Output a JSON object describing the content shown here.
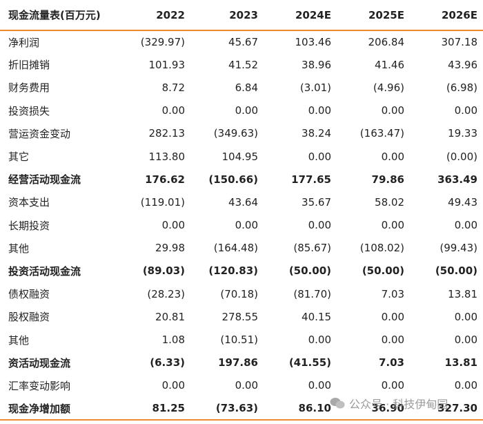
{
  "table": {
    "header": [
      "现金流量表(百万元)",
      "2022",
      "2023",
      "2024E",
      "2025E",
      "2026E"
    ],
    "rows": [
      {
        "cells": [
          "净利润",
          "(329.97)",
          "45.67",
          "103.46",
          "206.84",
          "307.18"
        ],
        "bold": false
      },
      {
        "cells": [
          "折旧摊销",
          "101.93",
          "41.52",
          "38.96",
          "41.46",
          "43.96"
        ],
        "bold": false
      },
      {
        "cells": [
          "财务费用",
          "8.72",
          "6.84",
          "(3.01)",
          "(4.96)",
          "(6.98)"
        ],
        "bold": false
      },
      {
        "cells": [
          "投资损失",
          "0.00",
          "0.00",
          "0.00",
          "0.00",
          "0.00"
        ],
        "bold": false
      },
      {
        "cells": [
          "营运资金变动",
          "282.13",
          "(349.63)",
          "38.24",
          "(163.47)",
          "19.33"
        ],
        "bold": false
      },
      {
        "cells": [
          "其它",
          "113.80",
          "104.95",
          "0.00",
          "0.00",
          "(0.00)"
        ],
        "bold": false
      },
      {
        "cells": [
          "经营活动现金流",
          "176.62",
          "(150.66)",
          "177.65",
          "79.86",
          "363.49"
        ],
        "bold": true
      },
      {
        "cells": [
          "资本支出",
          "(119.01)",
          "43.64",
          "35.67",
          "58.02",
          "49.43"
        ],
        "bold": false
      },
      {
        "cells": [
          "长期投资",
          "0.00",
          "0.00",
          "0.00",
          "0.00",
          "0.00"
        ],
        "bold": false
      },
      {
        "cells": [
          "其他",
          "29.98",
          "(164.48)",
          "(85.67)",
          "(108.02)",
          "(99.43)"
        ],
        "bold": false
      },
      {
        "cells": [
          "投资活动现金流",
          "(89.03)",
          "(120.83)",
          "(50.00)",
          "(50.00)",
          "(50.00)"
        ],
        "bold": true
      },
      {
        "cells": [
          "债权融资",
          "(28.23)",
          "(70.18)",
          "(81.70)",
          "7.03",
          "13.81"
        ],
        "bold": false
      },
      {
        "cells": [
          "股权融资",
          "20.81",
          "278.55",
          "40.15",
          "0.00",
          "0.00"
        ],
        "bold": false
      },
      {
        "cells": [
          "其他",
          "1.08",
          "(10.51)",
          "0.00",
          "0.00",
          "0.00"
        ],
        "bold": false
      },
      {
        "cells": [
          "资活动现金流",
          "(6.33)",
          "197.86",
          "(41.55)",
          "7.03",
          "13.81"
        ],
        "bold": true
      },
      {
        "cells": [
          "汇率变动影响",
          "0.00",
          "0.00",
          "0.00",
          "0.00",
          "0.00"
        ],
        "bold": false
      },
      {
        "cells": [
          "现金净增加额",
          "81.25",
          "(73.63)",
          "86.10",
          "36.90",
          "327.30"
        ],
        "bold": true
      }
    ]
  },
  "watermark": "公众号 · 科技伊甸园"
}
